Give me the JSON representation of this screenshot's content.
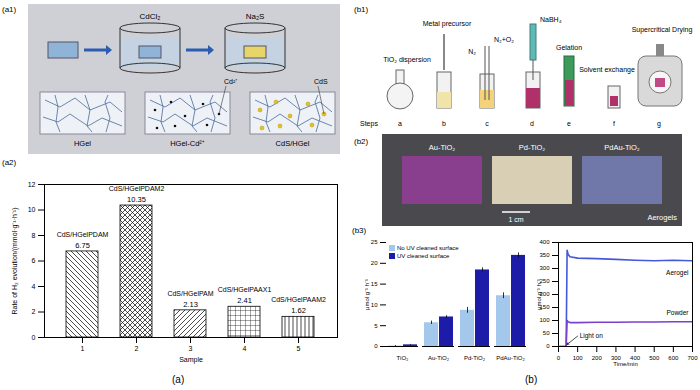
{
  "panels": {
    "a1": {
      "label": "(a1)",
      "reagents": [
        "CdCl₂",
        "Na₂S"
      ],
      "stages": [
        "HGel",
        "HGel-Cd²⁺",
        "CdS/HGel"
      ],
      "callouts": [
        "Cd²⁺",
        "CdS"
      ]
    },
    "b1": {
      "label": "(b1)",
      "labels": [
        "Metal precursor",
        "TiO₂ dispersion",
        "N₂+O₂",
        "N₂",
        "NaBH₄",
        "Gelation",
        "Solvent exchange",
        "Supercritical Drying"
      ],
      "steps_title": "Steps",
      "steps": [
        "a",
        "b",
        "c",
        "d",
        "e",
        "f",
        "g"
      ]
    },
    "b2": {
      "label": "(b2)",
      "samples": [
        "Au-TiO₂",
        "Pd-TiO₂",
        "PdAu-TiO₂"
      ],
      "scale_bar": "1 cm",
      "caption": "Aerogels"
    },
    "captions": [
      "(a)",
      "(b)"
    ]
  },
  "chart_data": [
    {
      "type": "bar",
      "title": "(a2)",
      "x_label": "Sample",
      "y_label": "Rate of H₂ evolution/(mmol·g⁻¹·h⁻¹)",
      "categories": [
        "1",
        "2",
        "3",
        "4",
        "5"
      ],
      "values": [
        6.75,
        10.35,
        2.13,
        2.41,
        1.62
      ],
      "sample_labels": [
        {
          "text": "CdS/HGel",
          "sub": "PDAM"
        },
        {
          "text": "CdS/HGel",
          "sub": "PDAM2"
        },
        {
          "text": "CdS/HGel",
          "sub": "PAM"
        },
        {
          "text": "CdS/HGel",
          "sub": "PAAX1"
        },
        {
          "text": "CdS/HGel",
          "sub": "PAAM2"
        }
      ],
      "data_labels": true,
      "ylim": [
        0,
        12
      ],
      "yticks": [
        0,
        2,
        4,
        6,
        8,
        10,
        12
      ]
    },
    {
      "type": "bar",
      "title": "(b3)",
      "y_label": "μmol g⁻¹ h⁻¹",
      "categories": [
        "TiO₂",
        "Au-TiO₂",
        "Pd-TiO₂",
        "PdAu-TiO₂"
      ],
      "series": [
        {
          "name": "No UV cleaned surface",
          "color": "#a4c8ec",
          "values": [
            0.1,
            5.7,
            8.7,
            12.2
          ],
          "errors": [
            0.1,
            0.4,
            0.7,
            0.7
          ]
        },
        {
          "name": "UV cleaned surface",
          "color": "#1c1ca8",
          "values": [
            0.4,
            7.1,
            18.4,
            21.9
          ],
          "errors": [
            0.1,
            0.3,
            0.5,
            0.6
          ]
        }
      ],
      "legend": "top-left",
      "ylim": [
        0,
        25
      ],
      "yticks": [
        0,
        5,
        10,
        15,
        20,
        25
      ]
    },
    {
      "type": "line",
      "x_label": "Time/min",
      "y_label": "μmol g⁻¹ h⁻¹",
      "x": [
        0,
        30,
        40,
        45,
        50,
        60,
        100,
        200,
        300,
        400,
        500,
        600,
        700
      ],
      "series": [
        {
          "name": "Aerogel",
          "color": "#4657d8",
          "values": [
            0,
            0,
            0,
            370,
            355,
            345,
            340,
            338,
            335,
            332,
            330,
            332,
            330
          ]
        },
        {
          "name": "Powder",
          "color": "#7b3fd0",
          "values": [
            0,
            0,
            0,
            100,
            95,
            92,
            92,
            93,
            93,
            94,
            94,
            95,
            95
          ]
        }
      ],
      "annotations": [
        {
          "text": "Light on",
          "x": 100,
          "y": 40,
          "x2": 45,
          "y2": 8
        }
      ],
      "xlim": [
        0,
        700
      ],
      "xticks": [
        0,
        100,
        200,
        300,
        400,
        500,
        600,
        700
      ],
      "ylim": [
        0,
        400
      ],
      "yticks": [
        0,
        50,
        100,
        150,
        200,
        250,
        300,
        350,
        400
      ]
    }
  ]
}
